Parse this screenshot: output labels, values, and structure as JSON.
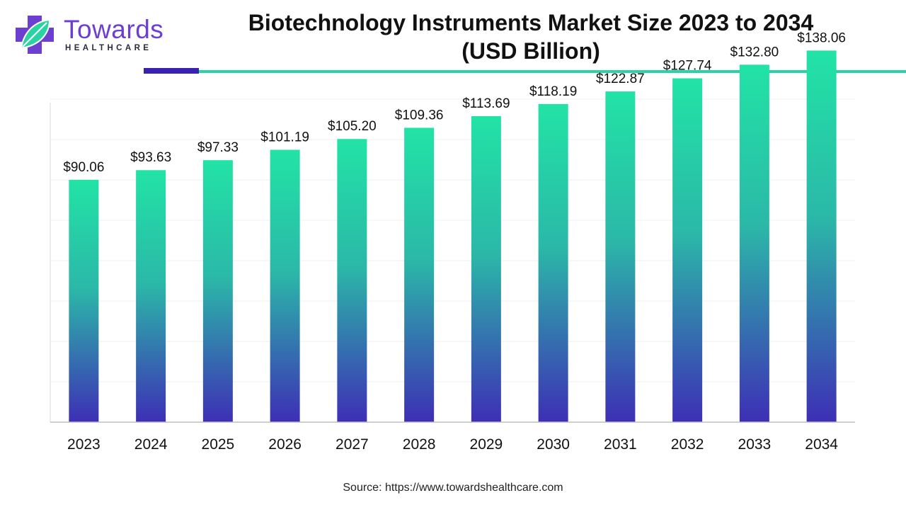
{
  "header": {
    "logo_word": "Towards",
    "logo_sub": "HEALTHCARE",
    "title_line1": "Biotechnology Instruments Market Size 2023 to 2034",
    "title_line2": "(USD Billion)"
  },
  "colors": {
    "brand_purple": "#6d3fd1",
    "accent_teal": "#2ad3a4",
    "bar_top": "#22e3a6",
    "bar_bottom": "#3d2fb5"
  },
  "chart_data": {
    "type": "bar",
    "title": "Biotechnology Instruments Market Size 2023 to 2034 (USD Billion)",
    "categories": [
      "2023",
      "2024",
      "2025",
      "2026",
      "2027",
      "2028",
      "2029",
      "2030",
      "2031",
      "2032",
      "2033",
      "2034"
    ],
    "values": [
      90.06,
      93.63,
      97.33,
      101.19,
      105.2,
      109.36,
      113.69,
      118.19,
      122.87,
      127.74,
      132.8,
      138.06
    ],
    "data_labels": [
      "$90.06",
      "$93.63",
      "$97.33",
      "$101.19",
      "$105.20",
      "$109.36",
      "$113.69",
      "$118.19",
      "$122.87",
      "$127.74",
      "$132.80",
      "$138.06"
    ],
    "xlabel": "",
    "ylabel": "",
    "ylim": [
      0,
      160
    ],
    "grid": true,
    "legend": "none"
  },
  "footer": {
    "source": "Source: https://www.towardshealthcare.com"
  }
}
